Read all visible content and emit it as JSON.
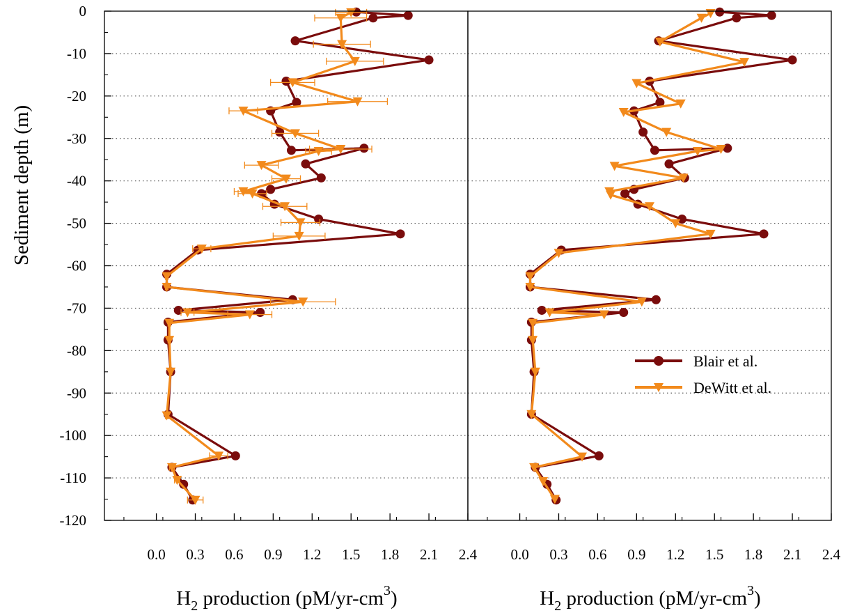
{
  "chart_data": {
    "type": "line",
    "orientation": "depth-profile",
    "y_axis": {
      "label": "Sediment depth (m)",
      "range": [
        -120,
        0
      ],
      "ticks": [
        0,
        -10,
        -20,
        -30,
        -40,
        -50,
        -60,
        -70,
        -80,
        -90,
        -100,
        -110,
        -120
      ],
      "tick_labels": [
        "0",
        "-10",
        "-20",
        "-30",
        "-40",
        "-50",
        "-60",
        "-70",
        "-80",
        "-90",
        "-100",
        "-110",
        "-120"
      ],
      "gridlines": "dotted-horizontal-every-10"
    },
    "x_axis": {
      "label_main": "H",
      "label_sub": "2",
      "label_rest": " production (pM/yr-cm",
      "label_sup": "3",
      "label_end": ")",
      "range": [
        -0.4,
        2.4
      ],
      "ticks": [
        0.0,
        0.3,
        0.6,
        0.9,
        1.2,
        1.5,
        1.8,
        2.1,
        2.4
      ],
      "tick_labels": [
        "0.0",
        "0.3",
        "0.6",
        "0.9",
        "1.2",
        "1.5",
        "1.8",
        "2.1",
        "2.4"
      ]
    },
    "legend": {
      "placement": "lower-right of right panel",
      "entries": [
        {
          "label": "Blair et al.",
          "color": "#7a0c0c",
          "marker": "circle"
        },
        {
          "label": "DeWitt et al.",
          "color": "#f28a1c",
          "marker": "triangle-down"
        }
      ]
    },
    "panels": [
      {
        "error_bars": true,
        "series": [
          {
            "name": "Blair et al.",
            "color": "#7a0c0c",
            "marker": "circle",
            "points": [
              [
                1.54,
                -0.2
              ],
              [
                1.94,
                -1.0
              ],
              [
                1.67,
                -1.6
              ],
              [
                1.07,
                -7.0
              ],
              [
                2.1,
                -11.5
              ],
              [
                1.0,
                -16.5
              ],
              [
                1.08,
                -21.5
              ],
              [
                0.88,
                -23.5
              ],
              [
                0.95,
                -28.5
              ],
              [
                1.04,
                -32.8
              ],
              [
                1.6,
                -32.3
              ],
              [
                1.15,
                -36.0
              ],
              [
                1.27,
                -39.3
              ],
              [
                0.88,
                -42.0
              ],
              [
                0.81,
                -43.0
              ],
              [
                0.91,
                -45.5
              ],
              [
                1.25,
                -49.0
              ],
              [
                1.88,
                -52.5
              ],
              [
                0.32,
                -56.3
              ],
              [
                0.08,
                -62.0
              ],
              [
                0.08,
                -65.0
              ],
              [
                1.05,
                -68.0
              ],
              [
                0.17,
                -70.5
              ],
              [
                0.8,
                -71.0
              ],
              [
                0.09,
                -73.3
              ],
              [
                0.09,
                -77.5
              ],
              [
                0.11,
                -85.0
              ],
              [
                0.09,
                -95.0
              ],
              [
                0.61,
                -104.8
              ],
              [
                0.12,
                -107.5
              ],
              [
                0.21,
                -111.5
              ],
              [
                0.28,
                -115.2
              ]
            ]
          },
          {
            "name": "DeWitt et al.",
            "color": "#f28a1c",
            "marker": "triangle-down",
            "points": [
              [
                1.5,
                -0.3,
                0.12
              ],
              [
                1.42,
                -1.6,
                0.2
              ],
              [
                1.43,
                -7.8,
                0.22
              ],
              [
                1.53,
                -11.8,
                0.22
              ],
              [
                1.05,
                -16.8,
                0.17
              ],
              [
                1.55,
                -21.3,
                0.23
              ],
              [
                0.67,
                -23.5,
                0.11
              ],
              [
                1.07,
                -28.8,
                0.18
              ],
              [
                1.42,
                -32.5,
                0.24
              ],
              [
                1.25,
                -33.0,
                0.1
              ],
              [
                0.81,
                -36.3,
                0.13
              ],
              [
                1.0,
                -39.5,
                0.11
              ],
              [
                0.67,
                -42.5,
                0.07
              ],
              [
                0.74,
                -43.0,
                0.11
              ],
              [
                0.99,
                -46.0,
                0.17
              ],
              [
                1.11,
                -49.8,
                0.15
              ],
              [
                1.1,
                -53.0,
                0.2
              ],
              [
                0.35,
                -56.0,
                0.07
              ],
              [
                0.08,
                -62.5,
                0.01
              ],
              [
                0.08,
                -65.0,
                0.01
              ],
              [
                1.13,
                -68.5,
                0.25
              ],
              [
                0.24,
                -71.0,
                0.05
              ],
              [
                0.72,
                -71.5,
                0.17
              ],
              [
                0.1,
                -73.5,
                0.01
              ],
              [
                0.1,
                -77.5,
                0.01
              ],
              [
                0.11,
                -85.0,
                0.01
              ],
              [
                0.08,
                -95.3,
                0.01
              ],
              [
                0.48,
                -104.8,
                0.07
              ],
              [
                0.12,
                -107.5,
                0.02
              ],
              [
                0.16,
                -110.5,
                0.02
              ],
              [
                0.3,
                -115.2,
                0.06
              ]
            ]
          }
        ]
      },
      {
        "error_bars": false,
        "series": [
          {
            "name": "Blair et al.",
            "color": "#7a0c0c",
            "marker": "circle",
            "points": [
              [
                1.54,
                -0.2
              ],
              [
                1.94,
                -1.0
              ],
              [
                1.67,
                -1.6
              ],
              [
                1.07,
                -7.0
              ],
              [
                2.1,
                -11.5
              ],
              [
                1.0,
                -16.5
              ],
              [
                1.08,
                -21.5
              ],
              [
                0.88,
                -23.5
              ],
              [
                0.95,
                -28.5
              ],
              [
                1.04,
                -32.8
              ],
              [
                1.6,
                -32.3
              ],
              [
                1.15,
                -36.0
              ],
              [
                1.27,
                -39.3
              ],
              [
                0.88,
                -42.0
              ],
              [
                0.81,
                -43.0
              ],
              [
                0.91,
                -45.5
              ],
              [
                1.25,
                -49.0
              ],
              [
                1.88,
                -52.5
              ],
              [
                0.32,
                -56.3
              ],
              [
                0.08,
                -62.0
              ],
              [
                0.08,
                -65.0
              ],
              [
                1.05,
                -68.0
              ],
              [
                0.17,
                -70.5
              ],
              [
                0.8,
                -71.0
              ],
              [
                0.09,
                -73.3
              ],
              [
                0.09,
                -77.5
              ],
              [
                0.11,
                -85.0
              ],
              [
                0.09,
                -95.0
              ],
              [
                0.61,
                -104.8
              ],
              [
                0.12,
                -107.5
              ],
              [
                0.21,
                -111.5
              ],
              [
                0.28,
                -115.2
              ]
            ]
          },
          {
            "name": "DeWitt et al.",
            "color": "#f28a1c",
            "marker": "triangle-down",
            "points": [
              [
                1.47,
                -0.5
              ],
              [
                1.4,
                -1.6
              ],
              [
                1.08,
                -7.2
              ],
              [
                1.73,
                -12.0
              ],
              [
                0.9,
                -17.0
              ],
              [
                1.24,
                -21.8
              ],
              [
                0.8,
                -23.8
              ],
              [
                1.13,
                -28.5
              ],
              [
                1.55,
                -32.5
              ],
              [
                1.37,
                -33.0
              ],
              [
                0.73,
                -36.5
              ],
              [
                1.26,
                -39.3
              ],
              [
                0.69,
                -42.5
              ],
              [
                0.7,
                -43.3
              ],
              [
                1.0,
                -46.0
              ],
              [
                1.2,
                -50.0
              ],
              [
                1.47,
                -52.5
              ],
              [
                0.3,
                -57.0
              ],
              [
                0.08,
                -62.5
              ],
              [
                0.08,
                -65.0
              ],
              [
                0.94,
                -68.5
              ],
              [
                0.23,
                -71.0
              ],
              [
                0.65,
                -71.5
              ],
              [
                0.1,
                -73.5
              ],
              [
                0.1,
                -77.5
              ],
              [
                0.12,
                -85.0
              ],
              [
                0.09,
                -95.0
              ],
              [
                0.48,
                -105.0
              ],
              [
                0.11,
                -107.5
              ],
              [
                0.18,
                -110.8
              ],
              [
                0.27,
                -115.0
              ]
            ]
          }
        ]
      }
    ]
  }
}
